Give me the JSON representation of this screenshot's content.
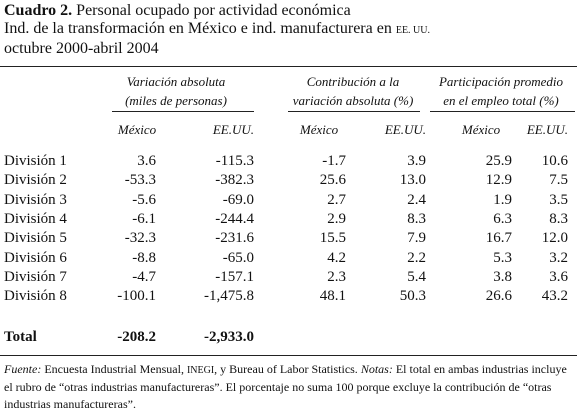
{
  "title": {
    "label": "Cuadro 2.",
    "line1": " Personal ocupado por actividad económica",
    "line2a": "Ind. de la transformación en México e ind. manufacturera en ",
    "line2b": "EE. UU.",
    "line3": "octubre 2000-abril 2004"
  },
  "headers": {
    "group1": [
      "Variación absoluta",
      "(miles de personas)"
    ],
    "group2": [
      "Contribución a la",
      "variación absoluta (%)"
    ],
    "group3": [
      "Participación promedio",
      "en el empleo total (%)"
    ],
    "sub_mexico": "México",
    "sub_eeuu": "EE.UU."
  },
  "rows": [
    {
      "label": "División 1",
      "values": [
        "3.6",
        "-115.3",
        "-1.7",
        "3.9",
        "25.9",
        "10.6"
      ]
    },
    {
      "label": "División 2",
      "values": [
        "-53.3",
        "-382.3",
        "25.6",
        "13.0",
        "12.9",
        "7.5"
      ]
    },
    {
      "label": "División 3",
      "values": [
        "-5.6",
        "-69.0",
        "2.7",
        "2.4",
        "1.9",
        "3.5"
      ]
    },
    {
      "label": "División 4",
      "values": [
        "-6.1",
        "-244.4",
        "2.9",
        "8.3",
        "6.3",
        "8.3"
      ]
    },
    {
      "label": "División 5",
      "values": [
        "-32.3",
        "-231.6",
        "15.5",
        "7.9",
        "16.7",
        "12.0"
      ]
    },
    {
      "label": "División 6",
      "values": [
        "-8.8",
        "-65.0",
        "4.2",
        "2.2",
        "5.3",
        "3.2"
      ]
    },
    {
      "label": "División 7",
      "values": [
        "-4.7",
        "-157.1",
        "2.3",
        "5.4",
        "3.8",
        "3.6"
      ]
    },
    {
      "label": "División 8",
      "values": [
        "-100.1",
        "-1,475.8",
        "48.1",
        "50.3",
        "26.6",
        "43.2"
      ]
    }
  ],
  "total": {
    "label": "Total",
    "mexico": "-208.2",
    "eeuu": "-2,933.0"
  },
  "note": {
    "fuente_label": "Fuente:",
    "fuente_a": " Encuesta Industrial Mensual, ",
    "inegi": "INEGI",
    "fuente_b": ", y Bureau of Labor Statistics. ",
    "notas_label": "Notas:",
    "notas_text": " El total en ambas industrias incluye el rubro de “otras industrias manufactureras”. El porcentaje no suma 100 porque excluye la contribución de “otras industrias manufactureras”."
  }
}
